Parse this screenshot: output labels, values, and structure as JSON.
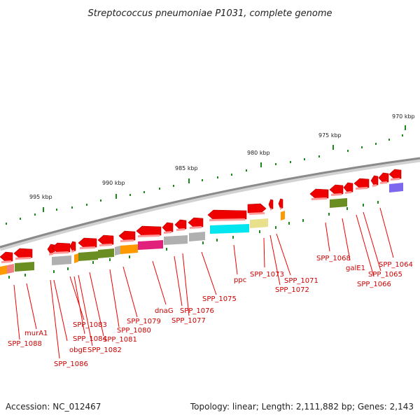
{
  "title": "Streptococcus pneumoniae P1031, complete genome",
  "footer": {
    "accession": "Accession: NC_012467",
    "topology": "Topology: linear; Length: 2,111,882 bp; Genes: 2,143"
  },
  "scale_labels": [
    "970 kbp",
    "975 kbp",
    "980 kbp",
    "985 kbp",
    "990 kbp",
    "995 kbp"
  ],
  "gene_labels": [
    "murA1",
    "SPP_1088",
    "obgE",
    "SPP_1086",
    "SPP_1083",
    "SPP_1084",
    "SPP_1082",
    "SPP_1081",
    "SPP_1080",
    "SPP_1079",
    "dnaG",
    "SPP_1076",
    "SPP_1077",
    "SPP_1075",
    "ppc",
    "SPP_1073",
    "SPP_1071",
    "SPP_1072",
    "SPP_1068",
    "galE1",
    "SPP_1066",
    "SPP_1065",
    "SPP_1064"
  ],
  "colors": {
    "gene_arrow": "#ee0000",
    "leader_line": "#ee0000",
    "backbone": "#808080",
    "tick": "#1a8a1a",
    "cog_green": "#6b8e23",
    "cog_grey": "#b0b0b0",
    "cog_orange": "#ff9900",
    "cog_magenta": "#e0207a",
    "cog_cyan": "#00e5ee",
    "cog_khaki": "#e8e08a",
    "cog_salmon": "#f08080",
    "cog_purple": "#7b68ee"
  }
}
